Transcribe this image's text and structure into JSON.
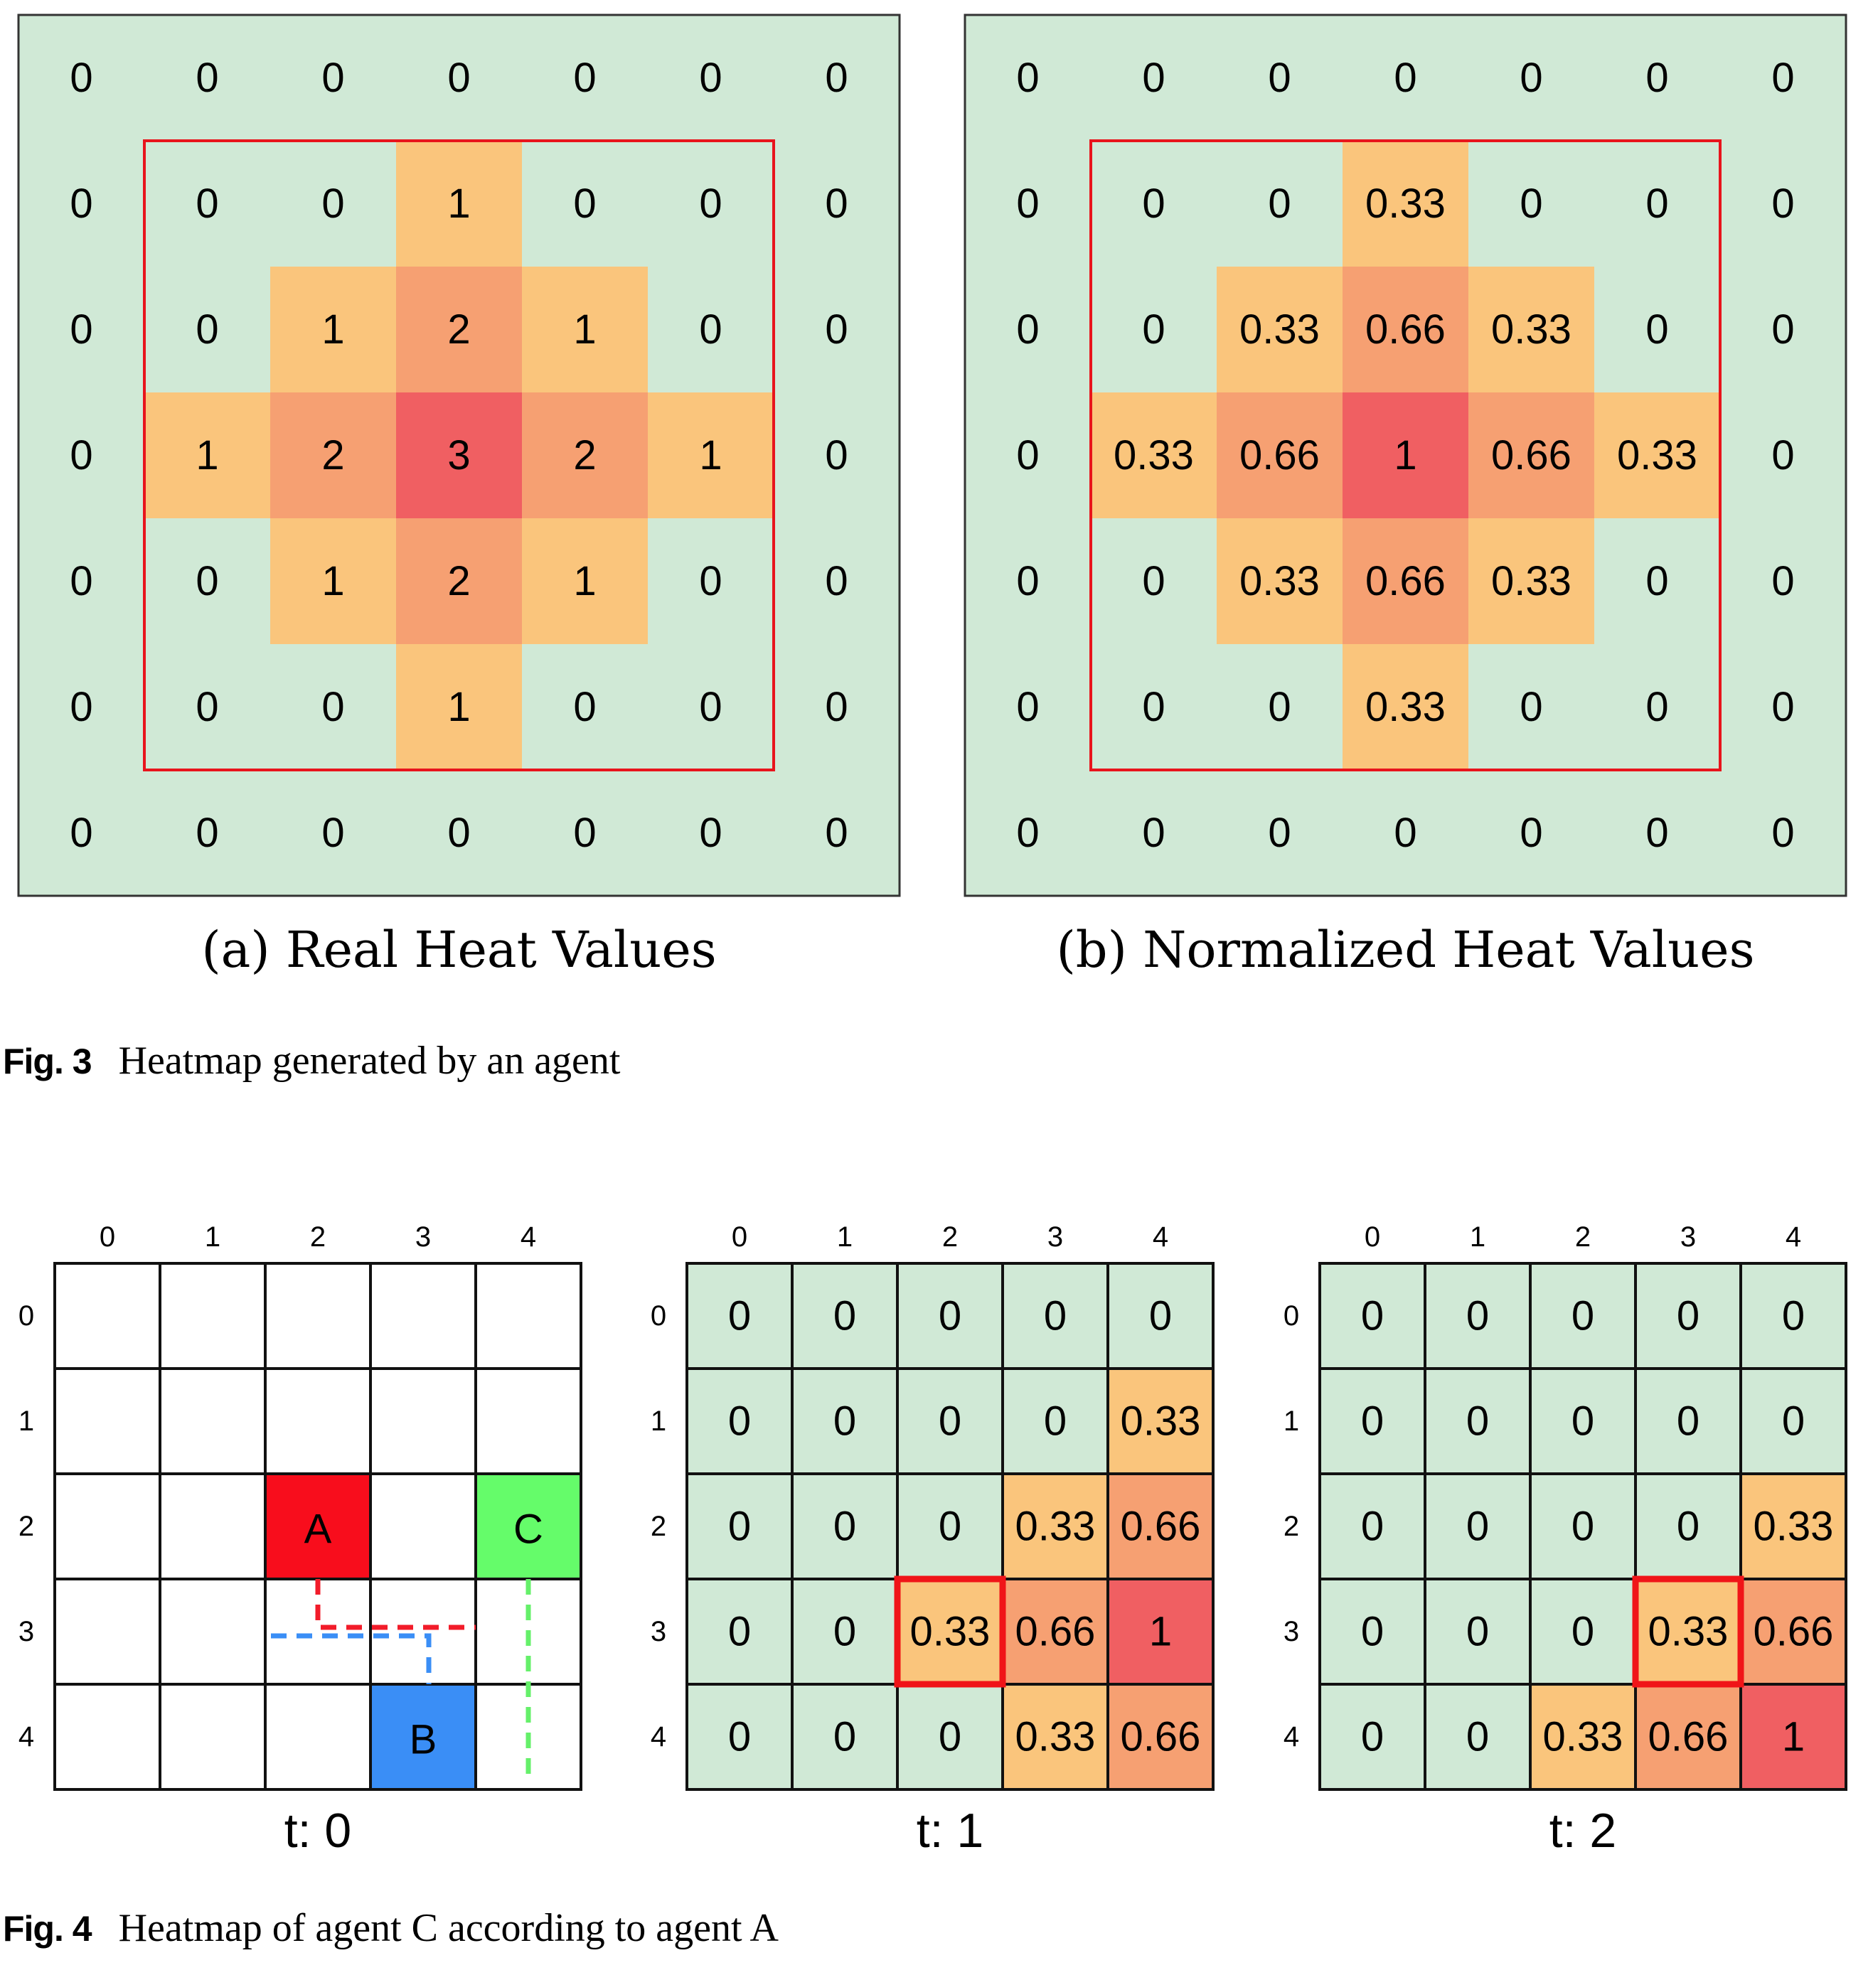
{
  "colors": {
    "zero": "#d0e9d6",
    "low": "#fac57c",
    "mid": "#f6a072",
    "high": "#f05f62",
    "region_border": "#e8141c",
    "agent_A": "#f80d1c",
    "agent_B": "#3a8ef6",
    "agent_C": "#65fc6a"
  },
  "figure3": {
    "label": "Fig. 3",
    "caption": "Heatmap generated by an agent",
    "panels": [
      {
        "sublabel": "(a) Real Heat Values",
        "values": [
          [
            "0",
            "0",
            "0",
            "0",
            "0",
            "0",
            "0"
          ],
          [
            "0",
            "0",
            "0",
            "1",
            "0",
            "0",
            "0"
          ],
          [
            "0",
            "0",
            "1",
            "2",
            "1",
            "0",
            "0"
          ],
          [
            "0",
            "1",
            "2",
            "3",
            "2",
            "1",
            "0"
          ],
          [
            "0",
            "0",
            "1",
            "2",
            "1",
            "0",
            "0"
          ],
          [
            "0",
            "0",
            "0",
            "1",
            "0",
            "0",
            "0"
          ],
          [
            "0",
            "0",
            "0",
            "0",
            "0",
            "0",
            "0"
          ]
        ]
      },
      {
        "sublabel": "(b) Normalized Heat Values",
        "values": [
          [
            "0",
            "0",
            "0",
            "0",
            "0",
            "0",
            "0"
          ],
          [
            "0",
            "0",
            "0",
            "0.33",
            "0",
            "0",
            "0"
          ],
          [
            "0",
            "0",
            "0.33",
            "0.66",
            "0.33",
            "0",
            "0"
          ],
          [
            "0",
            "0.33",
            "0.66",
            "1",
            "0.66",
            "0.33",
            "0"
          ],
          [
            "0",
            "0",
            "0.33",
            "0.66",
            "0.33",
            "0",
            "0"
          ],
          [
            "0",
            "0",
            "0",
            "0.33",
            "0",
            "0",
            "0"
          ],
          [
            "0",
            "0",
            "0",
            "0",
            "0",
            "0",
            "0"
          ]
        ]
      }
    ]
  },
  "figure4": {
    "label": "Fig. 4",
    "caption": "Heatmap of agent C according to agent A",
    "axis_ticks": [
      "0",
      "1",
      "2",
      "3",
      "4"
    ],
    "panels": [
      {
        "time_label": "t: 0",
        "agents": [
          {
            "name": "A",
            "row": 2,
            "col": 2
          },
          {
            "name": "B",
            "row": 4,
            "col": 3
          },
          {
            "name": "C",
            "row": 2,
            "col": 4
          }
        ]
      },
      {
        "time_label": "t: 1",
        "values": [
          [
            "0",
            "0",
            "0",
            "0",
            "0"
          ],
          [
            "0",
            "0",
            "0",
            "0",
            "0.33"
          ],
          [
            "0",
            "0",
            "0",
            "0.33",
            "0.66"
          ],
          [
            "0",
            "0",
            "0.33",
            "0.66",
            "1"
          ],
          [
            "0",
            "0",
            "0",
            "0.33",
            "0.66"
          ]
        ],
        "highlight": {
          "row": 3,
          "col": 2
        }
      },
      {
        "time_label": "t: 2",
        "values": [
          [
            "0",
            "0",
            "0",
            "0",
            "0"
          ],
          [
            "0",
            "0",
            "0",
            "0",
            "0"
          ],
          [
            "0",
            "0",
            "0",
            "0",
            "0.33"
          ],
          [
            "0",
            "0",
            "0",
            "0.33",
            "0.66"
          ],
          [
            "0",
            "0",
            "0.33",
            "0.66",
            "1"
          ]
        ],
        "highlight": {
          "row": 3,
          "col": 3
        }
      }
    ]
  }
}
